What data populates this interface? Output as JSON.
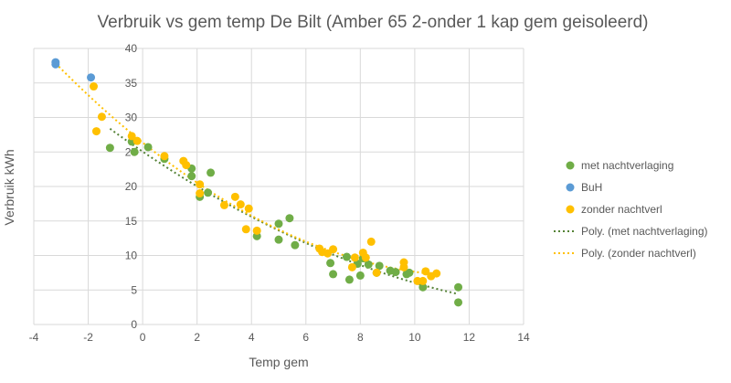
{
  "chart_data": {
    "type": "scatter",
    "title": "Verbruik vs gem temp De Bilt (Amber 65 2-onder 1 kap gem geisoleerd)",
    "xlabel": "Temp gem",
    "ylabel": "Verbruik kWh",
    "xlim": [
      -4,
      14
    ],
    "ylim": [
      0,
      40
    ],
    "xticks": [
      -4,
      -2,
      0,
      2,
      4,
      6,
      8,
      10,
      12,
      14
    ],
    "yticks": [
      0,
      5,
      10,
      15,
      20,
      25,
      30,
      35,
      40
    ],
    "grid": true,
    "legend_position": "right",
    "series": [
      {
        "name": "met nachtverlaging",
        "color": "#70AD47",
        "points": [
          [
            -1.2,
            25.6
          ],
          [
            -0.4,
            26.5
          ],
          [
            -0.3,
            25
          ],
          [
            0.2,
            25.7
          ],
          [
            0.8,
            24
          ],
          [
            1.8,
            22.6
          ],
          [
            1.8,
            21.5
          ],
          [
            2.1,
            18.5
          ],
          [
            2.4,
            19.1
          ],
          [
            2.5,
            22
          ],
          [
            4.2,
            12.8
          ],
          [
            5,
            14.6
          ],
          [
            5,
            12.3
          ],
          [
            5.4,
            15.4
          ],
          [
            5.6,
            11.5
          ],
          [
            6.9,
            8.9
          ],
          [
            7,
            7.3
          ],
          [
            7.5,
            9.8
          ],
          [
            7.6,
            6.5
          ],
          [
            7.9,
            8.8
          ],
          [
            8,
            7.1
          ],
          [
            8.1,
            9.6
          ],
          [
            8.3,
            8.7
          ],
          [
            8.6,
            7.5
          ],
          [
            8.7,
            8.5
          ],
          [
            9.1,
            7.8
          ],
          [
            9.3,
            7.6
          ],
          [
            9.7,
            7.3
          ],
          [
            9.8,
            7.5
          ],
          [
            10.3,
            5.4
          ],
          [
            11.6,
            5.4
          ],
          [
            11.6,
            3.2
          ]
        ]
      },
      {
        "name": "BuH",
        "color": "#5B9BD5",
        "points": [
          [
            -3.2,
            38
          ],
          [
            -3.2,
            37.7
          ],
          [
            -1.9,
            35.8
          ]
        ]
      },
      {
        "name": "zonder nachtverl",
        "color": "#FFC000",
        "points": [
          [
            -1.8,
            34.5
          ],
          [
            -1.7,
            28
          ],
          [
            -1.5,
            30.1
          ],
          [
            -0.4,
            27.3
          ],
          [
            -0.2,
            26.6
          ],
          [
            0.8,
            24.4
          ],
          [
            1.5,
            23.7
          ],
          [
            1.6,
            23.1
          ],
          [
            2.1,
            20.3
          ],
          [
            2.1,
            19
          ],
          [
            3,
            17.3
          ],
          [
            3.4,
            18.5
          ],
          [
            3.6,
            17.4
          ],
          [
            3.8,
            13.8
          ],
          [
            3.9,
            16.8
          ],
          [
            4.2,
            13.6
          ],
          [
            6.5,
            11
          ],
          [
            6.6,
            10.5
          ],
          [
            6.8,
            10.3
          ],
          [
            7,
            10.9
          ],
          [
            7.7,
            8.3
          ],
          [
            7.8,
            9.7
          ],
          [
            8.1,
            10.4
          ],
          [
            8.2,
            9.7
          ],
          [
            8.4,
            12
          ],
          [
            8.6,
            7.5
          ],
          [
            9.6,
            9
          ],
          [
            9.6,
            8.3
          ],
          [
            10.1,
            6.3
          ],
          [
            10.3,
            6.3
          ],
          [
            10.4,
            7.7
          ],
          [
            10.6,
            7
          ],
          [
            10.8,
            7.4
          ]
        ]
      }
    ],
    "trendlines": [
      {
        "name": "Poly. (met nachtverlaging)",
        "series": "met nachtverlaging",
        "type": "polynomial",
        "color": "#548235"
      },
      {
        "name": "Poly. (zonder nachtverl)",
        "series": "zonder nachtverl",
        "type": "polynomial",
        "color": "#FFC000"
      }
    ]
  }
}
